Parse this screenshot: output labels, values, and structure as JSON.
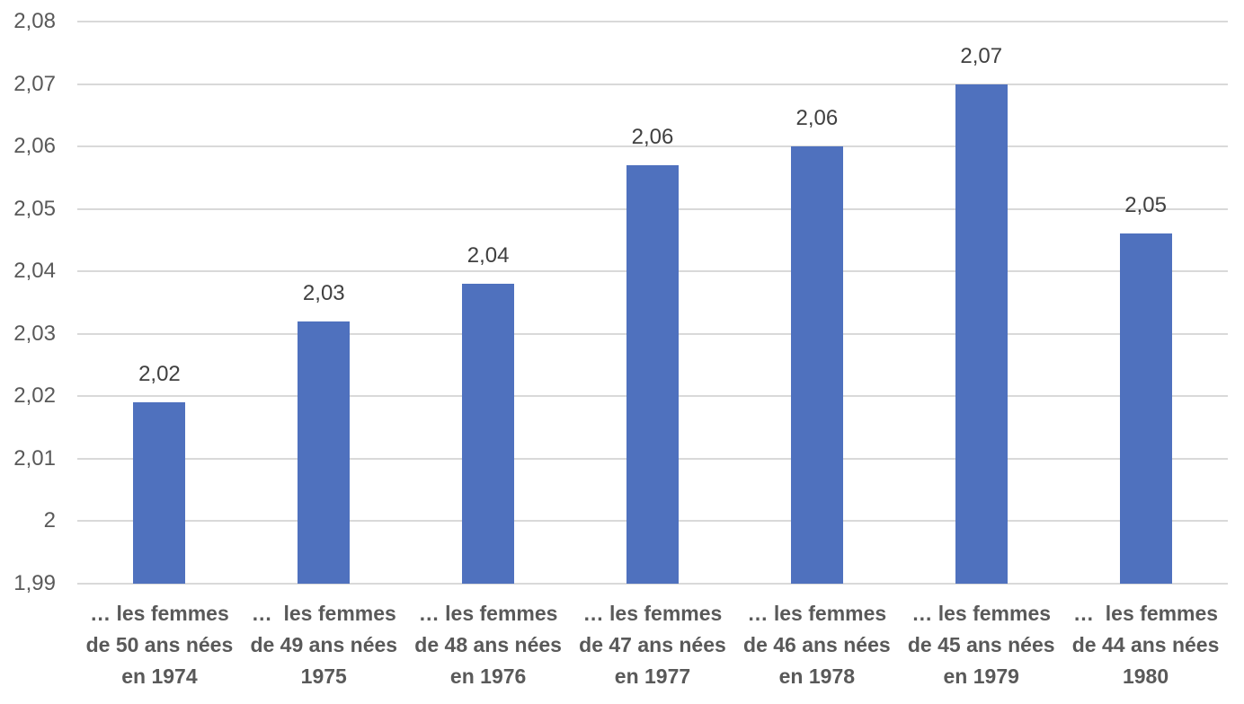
{
  "chart_data": {
    "type": "bar",
    "title": "",
    "xlabel": "",
    "ylabel": "",
    "ylim": [
      1.99,
      2.08
    ],
    "grid": true,
    "legend": "none",
    "background_color": "#ffffff",
    "bar_color": "#4f71be",
    "gridline_color": "#d9d9d9",
    "axis_text_color": "#595959",
    "value_label_color": "#404040",
    "y_ticks": [
      {
        "value": 2.08,
        "label": "2,08"
      },
      {
        "value": 2.07,
        "label": "2,07"
      },
      {
        "value": 2.06,
        "label": "2,06"
      },
      {
        "value": 2.05,
        "label": "2,05"
      },
      {
        "value": 2.04,
        "label": "2,04"
      },
      {
        "value": 2.03,
        "label": "2,03"
      },
      {
        "value": 2.02,
        "label": "2,02"
      },
      {
        "value": 2.01,
        "label": "2,01"
      },
      {
        "value": 2.0,
        "label": "2"
      },
      {
        "value": 1.99,
        "label": "1,99"
      }
    ],
    "categories": [
      "… les femmes\nde 50 ans nées\nen 1974",
      "…  les femmes\nde 49 ans nées\n1975",
      "… les femmes\nde 48 ans nées\nen 1976",
      "… les femmes\nde 47 ans nées\nen 1977",
      "… les femmes\nde 46 ans nées\nen 1978",
      "… les femmes\nde 45 ans nées\nen 1979",
      "…  les femmes\nde 44 ans nées\n1980"
    ],
    "values": [
      2.019,
      2.032,
      2.038,
      2.057,
      2.06,
      2.07,
      2.046
    ],
    "value_labels": [
      "2,02",
      "2,03",
      "2,04",
      "2,06",
      "2,06",
      "2,07",
      "2,05"
    ]
  }
}
